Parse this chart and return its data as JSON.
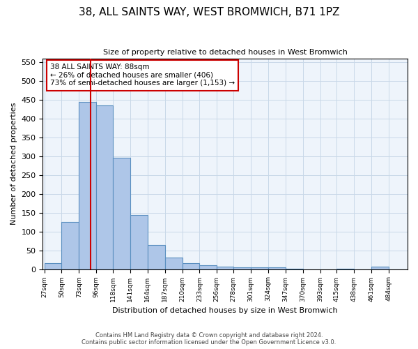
{
  "title": "38, ALL SAINTS WAY, WEST BROMWICH, B71 1PZ",
  "subtitle": "Size of property relative to detached houses in West Bromwich",
  "xlabel": "Distribution of detached houses by size in West Bromwich",
  "ylabel": "Number of detached properties",
  "bin_labels": [
    "27sqm",
    "50sqm",
    "73sqm",
    "96sqm",
    "118sqm",
    "141sqm",
    "164sqm",
    "187sqm",
    "210sqm",
    "233sqm",
    "256sqm",
    "278sqm",
    "301sqm",
    "324sqm",
    "347sqm",
    "370sqm",
    "393sqm",
    "415sqm",
    "438sqm",
    "461sqm",
    "484sqm"
  ],
  "bar_heights": [
    15,
    125,
    445,
    435,
    295,
    143,
    65,
    30,
    15,
    10,
    6,
    5,
    5,
    4,
    1,
    0,
    0,
    1,
    0,
    6,
    0
  ],
  "bar_color": "#aec6e8",
  "bar_edge_color": "#5a8fc0",
  "property_line_x": 88,
  "property_line_color": "#cc0000",
  "ylim": [
    0,
    560
  ],
  "yticks": [
    0,
    50,
    100,
    150,
    200,
    250,
    300,
    350,
    400,
    450,
    500,
    550
  ],
  "annotation_title": "38 ALL SAINTS WAY: 88sqm",
  "annotation_line1": "← 26% of detached houses are smaller (406)",
  "annotation_line2": "73% of semi-detached houses are larger (1,153) →",
  "footnote1": "Contains HM Land Registry data © Crown copyright and database right 2024.",
  "footnote2": "Contains public sector information licensed under the Open Government Licence v3.0.",
  "bin_edges": [
    27,
    50,
    73,
    96,
    118,
    141,
    164,
    187,
    210,
    233,
    256,
    278,
    301,
    324,
    347,
    370,
    393,
    415,
    438,
    461,
    484,
    507
  ]
}
